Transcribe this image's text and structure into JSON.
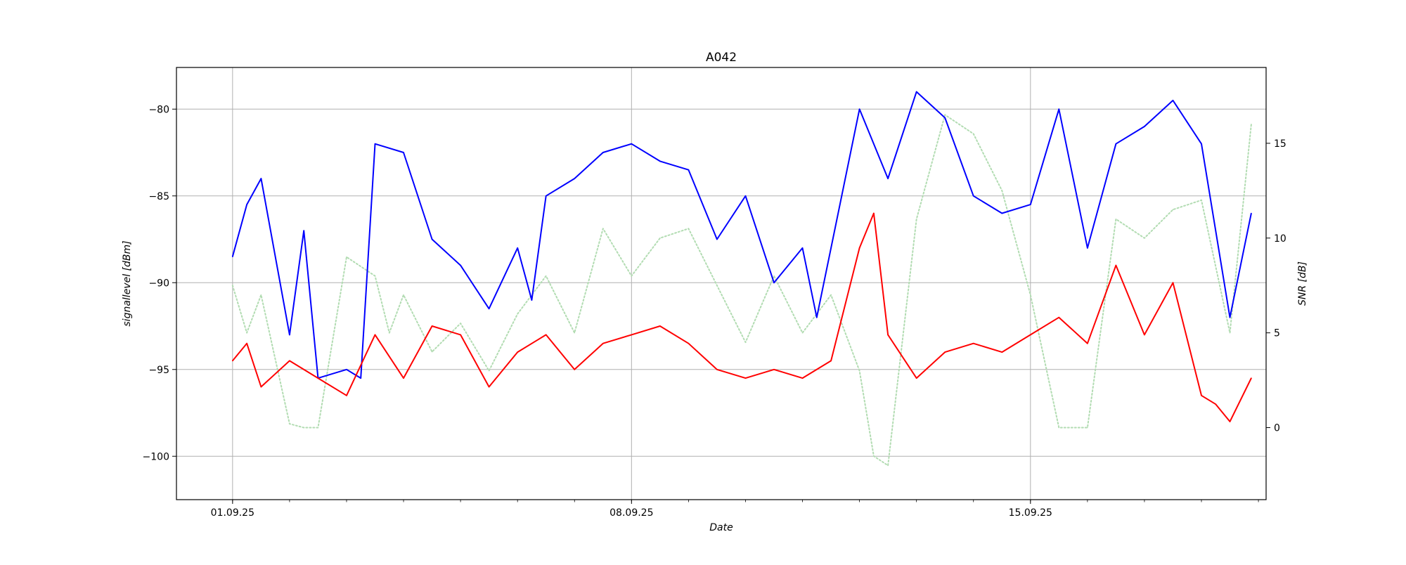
{
  "chart_data": {
    "type": "line",
    "title": "A042",
    "xlabel": "Date",
    "ylabel_left": "signallevel [dBm]",
    "ylabel_right": "SNR [dB]",
    "x_tick_labels": [
      "01.09.25",
      "08.09.25",
      "15.09.25"
    ],
    "x_ticks": [
      "2025-09-01",
      "2025-09-08",
      "2025-09-15"
    ],
    "xlim": [
      "2025-08-31T00:22",
      "2025-09-19T03:14"
    ],
    "ylim_left": [
      -102.5,
      -77.6
    ],
    "ylim_right": [
      -3.8,
      19.0
    ],
    "y_ticks_left": [
      -80,
      -85,
      -90,
      -95,
      -100
    ],
    "y_ticks_right": [
      0,
      5,
      10,
      15
    ],
    "grid": true,
    "series": [
      {
        "axis": "left",
        "color": "#0000ff",
        "style": "solid",
        "x": [
          "2025-09-01T00:00",
          "2025-09-01T06:00",
          "2025-09-01T12:00",
          "2025-09-02T00:00",
          "2025-09-02T06:00",
          "2025-09-02T12:00",
          "2025-09-03T00:00",
          "2025-09-03T06:00",
          "2025-09-03T12:00",
          "2025-09-04T00:00",
          "2025-09-04T12:00",
          "2025-09-05T00:00",
          "2025-09-05T12:00",
          "2025-09-06T00:00",
          "2025-09-06T06:00",
          "2025-09-06T12:00",
          "2025-09-07T00:00",
          "2025-09-07T12:00",
          "2025-09-08T00:00",
          "2025-09-08T12:00",
          "2025-09-09T00:00",
          "2025-09-09T12:00",
          "2025-09-10T00:00",
          "2025-09-10T12:00",
          "2025-09-11T00:00",
          "2025-09-11T06:00",
          "2025-09-11T12:00",
          "2025-09-12T00:00",
          "2025-09-12T12:00",
          "2025-09-13T00:00",
          "2025-09-13T12:00",
          "2025-09-14T00:00",
          "2025-09-14T12:00",
          "2025-09-15T00:00",
          "2025-09-15T12:00",
          "2025-09-16T00:00",
          "2025-09-16T12:00",
          "2025-09-17T00:00",
          "2025-09-17T12:00",
          "2025-09-18T00:00",
          "2025-09-18T12:00",
          "2025-09-18T21:00"
        ],
        "y": [
          -88.5,
          -85.5,
          -84.0,
          -93.0,
          -87.0,
          -95.5,
          -95.0,
          -95.5,
          -82.0,
          -82.5,
          -87.5,
          -89.0,
          -91.5,
          -88.0,
          -91.0,
          -85.0,
          -84.0,
          -82.5,
          -82.0,
          -83.0,
          -83.5,
          -87.5,
          -85.0,
          -90.0,
          -88.0,
          -92.0,
          -88.0,
          -80.0,
          -84.0,
          -79.0,
          -80.5,
          -85.0,
          -86.0,
          -85.5,
          -80.0,
          -88.0,
          -82.0,
          -81.0,
          -79.5,
          -82.0,
          -92.0,
          -86.0
        ]
      },
      {
        "axis": "left",
        "color": "#ff0000",
        "style": "solid",
        "x": [
          "2025-09-01T00:00",
          "2025-09-01T06:00",
          "2025-09-01T12:00",
          "2025-09-02T00:00",
          "2025-09-02T12:00",
          "2025-09-03T00:00",
          "2025-09-03T12:00",
          "2025-09-04T00:00",
          "2025-09-04T12:00",
          "2025-09-05T00:00",
          "2025-09-05T12:00",
          "2025-09-06T00:00",
          "2025-09-06T12:00",
          "2025-09-07T00:00",
          "2025-09-07T12:00",
          "2025-09-08T00:00",
          "2025-09-08T12:00",
          "2025-09-09T00:00",
          "2025-09-09T12:00",
          "2025-09-10T00:00",
          "2025-09-10T12:00",
          "2025-09-11T00:00",
          "2025-09-11T12:00",
          "2025-09-12T00:00",
          "2025-09-12T06:00",
          "2025-09-12T12:00",
          "2025-09-13T00:00",
          "2025-09-13T12:00",
          "2025-09-14T00:00",
          "2025-09-14T12:00",
          "2025-09-15T00:00",
          "2025-09-15T12:00",
          "2025-09-16T00:00",
          "2025-09-16T12:00",
          "2025-09-17T00:00",
          "2025-09-17T12:00",
          "2025-09-18T00:00",
          "2025-09-18T06:00",
          "2025-09-18T12:00",
          "2025-09-18T21:00"
        ],
        "y": [
          -94.5,
          -93.5,
          -96.0,
          -94.5,
          -95.5,
          -96.5,
          -93.0,
          -95.5,
          -92.5,
          -93.0,
          -96.0,
          -94.0,
          -93.0,
          -95.0,
          -93.5,
          -93.0,
          -92.5,
          -93.5,
          -95.0,
          -95.5,
          -95.0,
          -95.5,
          -94.5,
          -88.0,
          -86.0,
          -93.0,
          -95.5,
          -94.0,
          -93.5,
          -94.0,
          -93.0,
          -92.0,
          -93.5,
          -89.0,
          -93.0,
          -90.0,
          -96.5,
          -97.0,
          -98.0,
          -95.5
        ]
      },
      {
        "axis": "right",
        "color": "#b2dcb2",
        "style": "dotted",
        "x": [
          "2025-09-01T00:00",
          "2025-09-01T06:00",
          "2025-09-01T12:00",
          "2025-09-02T00:00",
          "2025-09-02T06:00",
          "2025-09-02T12:00",
          "2025-09-03T00:00",
          "2025-09-03T12:00",
          "2025-09-03T18:00",
          "2025-09-04T00:00",
          "2025-09-04T12:00",
          "2025-09-05T00:00",
          "2025-09-05T12:00",
          "2025-09-06T00:00",
          "2025-09-06T12:00",
          "2025-09-07T00:00",
          "2025-09-07T12:00",
          "2025-09-08T00:00",
          "2025-09-08T12:00",
          "2025-09-09T00:00",
          "2025-09-09T12:00",
          "2025-09-10T00:00",
          "2025-09-10T12:00",
          "2025-09-11T00:00",
          "2025-09-11T12:00",
          "2025-09-12T00:00",
          "2025-09-12T06:00",
          "2025-09-12T12:00",
          "2025-09-13T00:00",
          "2025-09-13T12:00",
          "2025-09-14T00:00",
          "2025-09-14T12:00",
          "2025-09-15T00:00",
          "2025-09-15T12:00",
          "2025-09-16T00:00",
          "2025-09-16T12:00",
          "2025-09-17T00:00",
          "2025-09-17T12:00",
          "2025-09-18T00:00",
          "2025-09-18T12:00",
          "2025-09-18T21:00"
        ],
        "y": [
          7.5,
          5.0,
          7.0,
          0.2,
          0.0,
          0.0,
          9.0,
          8.0,
          5.0,
          7.0,
          4.0,
          5.5,
          3.0,
          6.0,
          8.0,
          5.0,
          10.5,
          8.0,
          10.0,
          10.5,
          7.5,
          4.5,
          8.0,
          5.0,
          7.0,
          3.0,
          -1.5,
          -2.0,
          11.0,
          16.5,
          15.5,
          12.5,
          7.0,
          0.0,
          0.0,
          11.0,
          10.0,
          11.5,
          12.0,
          5.0,
          16.0
        ]
      }
    ]
  }
}
